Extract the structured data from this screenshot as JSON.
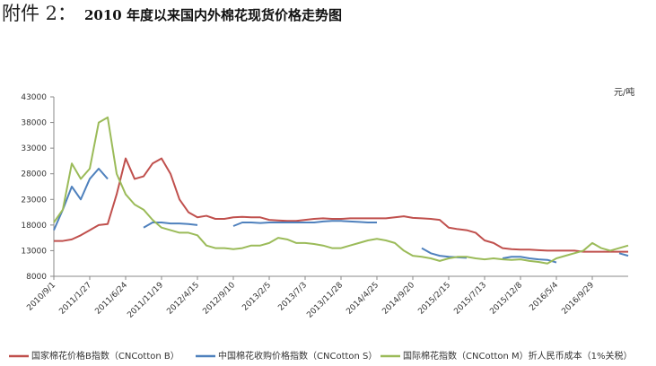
{
  "chart_data": {
    "type": "line",
    "caption_label": "附件 2：",
    "title": "2010 年度以来国内外棉花现货价格走势图",
    "unit": "元/吨",
    "categories": [
      "2010/9/1",
      null,
      null,
      null,
      "2011/1/27",
      null,
      null,
      null,
      "2011/6/24",
      null,
      null,
      null,
      "2011/11/19",
      null,
      null,
      null,
      "2012/4/15",
      null,
      null,
      null,
      "2012/9/10",
      null,
      null,
      null,
      "2013/2/5",
      null,
      null,
      null,
      "2013/7/3",
      null,
      null,
      null,
      "2013/11/28",
      null,
      null,
      null,
      "2014/4/25",
      null,
      null,
      null,
      "2014/9/20",
      null,
      null,
      null,
      "2015/2/15",
      null,
      null,
      null,
      "2015/7/13",
      null,
      null,
      null,
      "2015/12/8",
      null,
      null,
      null,
      "2016/5/4",
      null,
      null,
      null,
      "2016/9/29",
      null,
      null,
      null,
      null
    ],
    "series": [
      {
        "name": "国家棉花价格B指数（CNCotton B）",
        "color": "#c0504d",
        "values": [
          14900,
          14900,
          15200,
          16000,
          17000,
          18000,
          18200,
          24000,
          31000,
          27000,
          27500,
          30000,
          31000,
          28000,
          23000,
          20500,
          19500,
          19800,
          19200,
          19200,
          19500,
          19600,
          19500,
          19500,
          19000,
          18900,
          18800,
          18800,
          19000,
          19200,
          19300,
          19200,
          19200,
          19300,
          19300,
          19300,
          19300,
          19300,
          19500,
          19700,
          19400,
          19300,
          19200,
          19000,
          17500,
          17200,
          17000,
          16500,
          15000,
          14500,
          13500,
          13300,
          13200,
          13200,
          13100,
          13000,
          13000,
          13000,
          13000,
          12800,
          12800,
          12800,
          12800,
          12800,
          12800
        ]
      },
      {
        "name": "中国棉花收购价格指数（CNCotton S）",
        "color": "#4f81bd",
        "values": [
          17000,
          21000,
          25500,
          23000,
          27000,
          29000,
          27000,
          null,
          null,
          null,
          17500,
          18500,
          18500,
          18300,
          18300,
          18200,
          18000,
          null,
          null,
          null,
          17800,
          18500,
          18500,
          18400,
          18500,
          18500,
          18500,
          18500,
          18500,
          18500,
          18700,
          18800,
          18800,
          18700,
          18600,
          18500,
          18500,
          null,
          null,
          null,
          null,
          13500,
          12500,
          12000,
          11800,
          11700,
          11600,
          null,
          null,
          null,
          11500,
          11800,
          11800,
          11500,
          11300,
          11200,
          10700,
          null,
          null,
          null,
          null,
          null,
          null,
          12500,
          12000
        ]
      },
      {
        "name": "国际棉花指数（CNCotton M）折人民币成本（1%关税）",
        "color": "#9bbb59",
        "values": [
          18500,
          21000,
          30000,
          27000,
          29000,
          38000,
          39000,
          28000,
          24000,
          22000,
          21000,
          19000,
          17500,
          17000,
          16500,
          16500,
          16000,
          14000,
          13500,
          13500,
          13300,
          13500,
          14000,
          14000,
          14500,
          15500,
          15200,
          14500,
          14500,
          14300,
          14000,
          13500,
          13500,
          14000,
          14500,
          15000,
          15300,
          15000,
          14500,
          13000,
          12000,
          11800,
          11500,
          11000,
          11500,
          11800,
          11800,
          11500,
          11300,
          11500,
          11300,
          11200,
          11300,
          11000,
          10800,
          10500,
          11500,
          12000,
          12500,
          13000,
          14500,
          13500,
          13000,
          13500,
          14000
        ]
      }
    ],
    "ylim": [
      8000,
      43000
    ],
    "yticks": [
      8000,
      13000,
      18000,
      23000,
      28000,
      33000,
      38000,
      43000
    ],
    "grid": false
  }
}
